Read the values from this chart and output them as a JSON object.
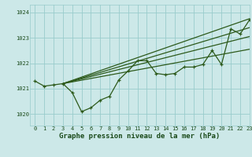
{
  "xlabel": "Graphe pression niveau de la mer (hPa)",
  "hours": [
    0,
    1,
    2,
    3,
    4,
    5,
    6,
    7,
    8,
    9,
    10,
    11,
    12,
    13,
    14,
    15,
    16,
    17,
    18,
    19,
    20,
    21,
    22,
    23
  ],
  "pressure_line": [
    1021.3,
    1021.1,
    1021.15,
    1021.2,
    1020.85,
    1020.1,
    1020.25,
    1020.55,
    1020.7,
    1021.35,
    1021.7,
    1022.1,
    1022.1,
    1021.6,
    1021.55,
    1021.6,
    1021.85,
    1021.85,
    1021.95,
    1022.5,
    1021.95,
    1023.35,
    1023.15,
    1023.7
  ],
  "trend_lines": [
    {
      "x": [
        3,
        23
      ],
      "y": [
        1021.2,
        1022.55
      ]
    },
    {
      "x": [
        3,
        23
      ],
      "y": [
        1021.2,
        1023.05
      ]
    },
    {
      "x": [
        3,
        23
      ],
      "y": [
        1021.2,
        1023.4
      ]
    },
    {
      "x": [
        3,
        23
      ],
      "y": [
        1021.2,
        1023.75
      ]
    }
  ],
  "ylim": [
    1019.55,
    1024.3
  ],
  "xlim": [
    -0.5,
    23
  ],
  "yticks": [
    1020,
    1021,
    1022,
    1023,
    1024
  ],
  "xticks": [
    0,
    1,
    2,
    3,
    4,
    5,
    6,
    7,
    8,
    9,
    10,
    11,
    12,
    13,
    14,
    15,
    16,
    17,
    18,
    19,
    20,
    21,
    22,
    23
  ],
  "bg_color": "#cce8e8",
  "grid_color": "#99cccc",
  "line_color": "#2d5a1b",
  "trend_color": "#2d5a1b",
  "label_color": "#1a4a1a",
  "xlabel_fontsize": 6.5,
  "tick_fontsize": 5.0
}
